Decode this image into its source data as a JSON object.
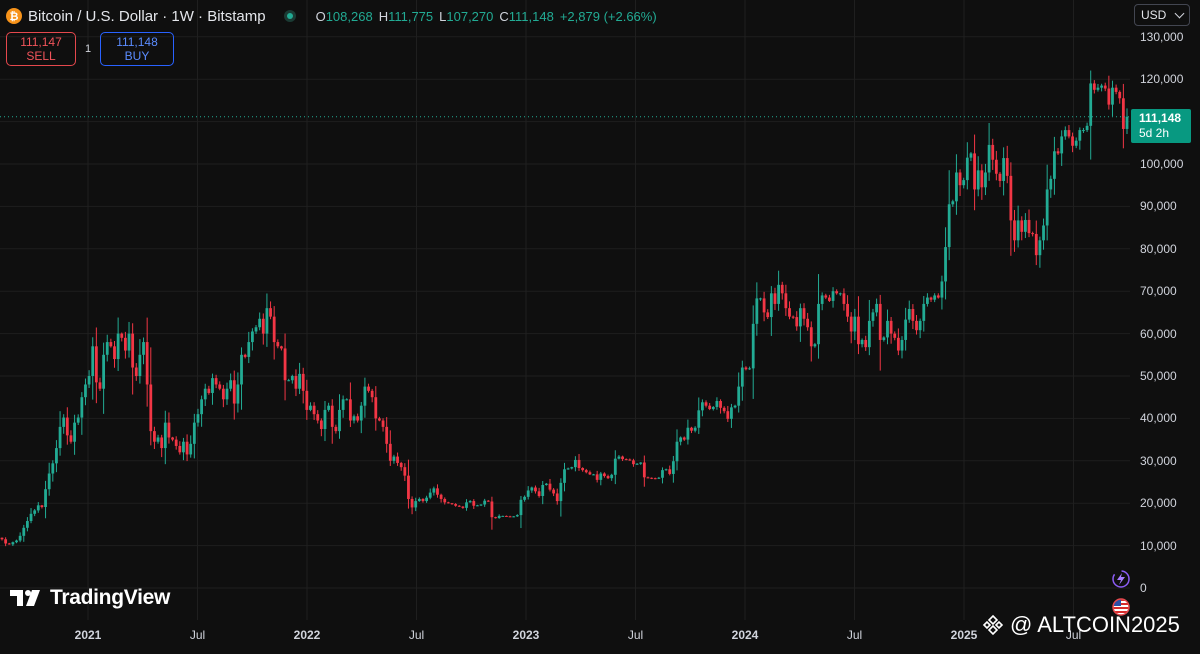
{
  "header": {
    "symbol_title": "Bitcoin / U.S. Dollar · 1W · Bitstamp",
    "btc_icon_glyph": "₿",
    "open_label": "O",
    "open": "108,268",
    "high_label": "H",
    "high": "111,775",
    "low_label": "L",
    "low": "107,270",
    "close_label": "C",
    "close": "111,148",
    "change": "+2,879 (+2.66%)"
  },
  "trade": {
    "sell_price": "111,147",
    "sell_label": "SELL",
    "spread": "1",
    "buy_price": "111,148",
    "buy_label": "BUY"
  },
  "currency_selector": "USD",
  "last_price_tag": {
    "price": "111,148",
    "countdown": "5d 2h"
  },
  "branding": {
    "logo_mark": "17",
    "logo_text": "TradingView"
  },
  "watermark": {
    "text": "@ ALTCOIN2025"
  },
  "colors": {
    "background": "#0f0f0f",
    "up": "#22ab94",
    "down": "#f23645",
    "grid": "#1f1f1f",
    "text": "#d1d4dc"
  },
  "icons": [
    "bitcoin-icon",
    "live-status-icon",
    "chevron-down-icon",
    "lightning-icon",
    "us-flag-icon",
    "binance-icon",
    "tradingview-logo-icon"
  ],
  "chart_data": {
    "type": "candlestick",
    "interval": "1W",
    "y_ticks": [
      130000,
      120000,
      110000,
      100000,
      90000,
      80000,
      70000,
      60000,
      50000,
      40000,
      30000,
      20000,
      10000,
      0
    ],
    "y_tick_labels": [
      "130,000",
      "120,000",
      "110,000",
      "100,000",
      "90,000",
      "80,000",
      "70,000",
      "60,000",
      "50,000",
      "40,000",
      "30,000",
      "20,000",
      "10,000",
      "0"
    ],
    "x_ticks": [
      {
        "label": "2021",
        "date": "2021-01",
        "year": true
      },
      {
        "label": "Jul",
        "date": "2021-07",
        "year": false
      },
      {
        "label": "2022",
        "date": "2022-01",
        "year": true
      },
      {
        "label": "Jul",
        "date": "2022-07",
        "year": false
      },
      {
        "label": "2023",
        "date": "2023-01",
        "year": true
      },
      {
        "label": "Jul",
        "date": "2023-07",
        "year": false
      },
      {
        "label": "2024",
        "date": "2024-01",
        "year": true
      },
      {
        "label": "Jul",
        "date": "2024-07",
        "year": false
      },
      {
        "label": "2025",
        "date": "2025-01",
        "year": true
      },
      {
        "label": "Jul",
        "date": "2025-07",
        "year": false
      }
    ],
    "grid": true,
    "closes": [
      11500,
      10500,
      10300,
      10800,
      11200,
      12300,
      14200,
      15800,
      17500,
      18300,
      19500,
      19100,
      23300,
      27000,
      29400,
      33000,
      38000,
      40200,
      36000,
      34500,
      39000,
      40200,
      45000,
      48000,
      50000,
      57000,
      48500,
      47000,
      55000,
      58000,
      57000,
      54000,
      60000,
      59000,
      56000,
      60000,
      52000,
      50000,
      55000,
      58000,
      48000,
      37000,
      34500,
      35500,
      33000,
      39000,
      35500,
      35000,
      33500,
      32000,
      34500,
      31500,
      34000,
      39000,
      41000,
      44500,
      47000,
      46000,
      49500,
      48000,
      47000,
      44500,
      47000,
      49000,
      43500,
      48000,
      55000,
      54500,
      58000,
      60500,
      61500,
      63500,
      60000,
      66000,
      64000,
      58000,
      57000,
      56500,
      49000,
      49000,
      50000,
      47000,
      50500,
      46500,
      42000,
      43000,
      41000,
      39500,
      37500,
      42000,
      43000,
      38000,
      37000,
      42000,
      44500,
      44500,
      39500,
      40500,
      39500,
      43000,
      47500,
      46500,
      45000,
      40000,
      39500,
      38000,
      34000,
      30000,
      31000,
      29500,
      28500,
      26500,
      21000,
      19000,
      20500,
      21000,
      20500,
      21300,
      22500,
      23500,
      22000,
      21000,
      20200,
      20000,
      19800,
      19400,
      19200,
      18900,
      20200,
      20500,
      19400,
      19500,
      19700,
      20600,
      20400,
      16700,
      16500,
      17000,
      17000,
      16900,
      16800,
      16900,
      17200,
      20800,
      21500,
      23000,
      23700,
      22800,
      21700,
      24300,
      24600,
      23200,
      22300,
      20500,
      24800,
      28000,
      28200,
      28500,
      30200,
      28300,
      27800,
      27300,
      26800,
      26800,
      25500,
      27000,
      26400,
      25900,
      26700,
      30500,
      31000,
      30400,
      30300,
      30100,
      29200,
      29300,
      29600,
      26100,
      26000,
      25900,
      25800,
      26000,
      27800,
      28000,
      26900,
      29900,
      34500,
      35500,
      35000,
      37800,
      37100,
      37800,
      41900,
      43800,
      43000,
      42200,
      42700,
      44100,
      42500,
      41700,
      39900,
      42600,
      43000,
      47500,
      52000,
      51600,
      51800,
      62300,
      68300,
      68300,
      65000,
      63900,
      69500,
      67000,
      71500,
      69500,
      66000,
      64000,
      63900,
      61700,
      66000,
      63500,
      61500,
      57000,
      57500,
      67000,
      69000,
      68500,
      67700,
      70000,
      69500,
      69500,
      67000,
      64000,
      60500,
      64000,
      57500,
      58500,
      56800,
      63000,
      65000,
      67000,
      58500,
      59100,
      63000,
      60000,
      59000,
      56000,
      58500,
      63300,
      65800,
      63000,
      60800,
      63000,
      67000,
      68500,
      68000,
      69000,
      68500,
      72300,
      80400,
      90500,
      91200,
      98000,
      95000,
      96200,
      101500,
      102500,
      94000,
      98500,
      94500,
      98000,
      104500,
      101000,
      97700,
      96000,
      101400,
      97200,
      86700,
      82000,
      86700,
      84000,
      86800,
      83700,
      83500,
      78500,
      82000,
      85500,
      94000,
      96500,
      103000,
      102500,
      106500,
      108000,
      106500,
      104300,
      105500,
      108000,
      108000,
      109000,
      119000,
      117500,
      118000,
      118500,
      117800,
      114000,
      118000,
      117000,
      115500,
      108268,
      111148
    ]
  }
}
